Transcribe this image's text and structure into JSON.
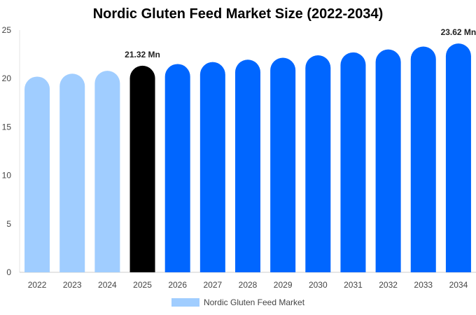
{
  "chart_data": {
    "type": "bar",
    "title": "Nordic Gluten Feed Market Size (2022-2034)",
    "xlabel": "",
    "ylabel": "",
    "categories": [
      "2022",
      "2023",
      "2024",
      "2025",
      "2026",
      "2027",
      "2028",
      "2029",
      "2030",
      "2031",
      "2032",
      "2033",
      "2034"
    ],
    "series": [
      {
        "name": "Nordic Gluten Feed Market",
        "values": [
          20.2,
          20.5,
          20.8,
          21.32,
          21.5,
          21.7,
          21.95,
          22.15,
          22.4,
          22.7,
          23.0,
          23.3,
          23.62
        ]
      }
    ],
    "bar_colors": [
      "#a0cdff",
      "#a0cdff",
      "#a0cdff",
      "#000000",
      "#0066ff",
      "#0066ff",
      "#0066ff",
      "#0066ff",
      "#0066ff",
      "#0066ff",
      "#0066ff",
      "#0066ff",
      "#0066ff"
    ],
    "data_labels": [
      {
        "category": "2025",
        "text": "21.32 Mn"
      },
      {
        "category": "2034",
        "text": "23.62 Mn"
      }
    ],
    "ylim": [
      0,
      25
    ],
    "yticks": [
      0,
      5,
      10,
      15,
      20,
      25
    ],
    "grid": false,
    "legend": {
      "position": "bottom",
      "swatch_color": "#a0cdff"
    }
  }
}
